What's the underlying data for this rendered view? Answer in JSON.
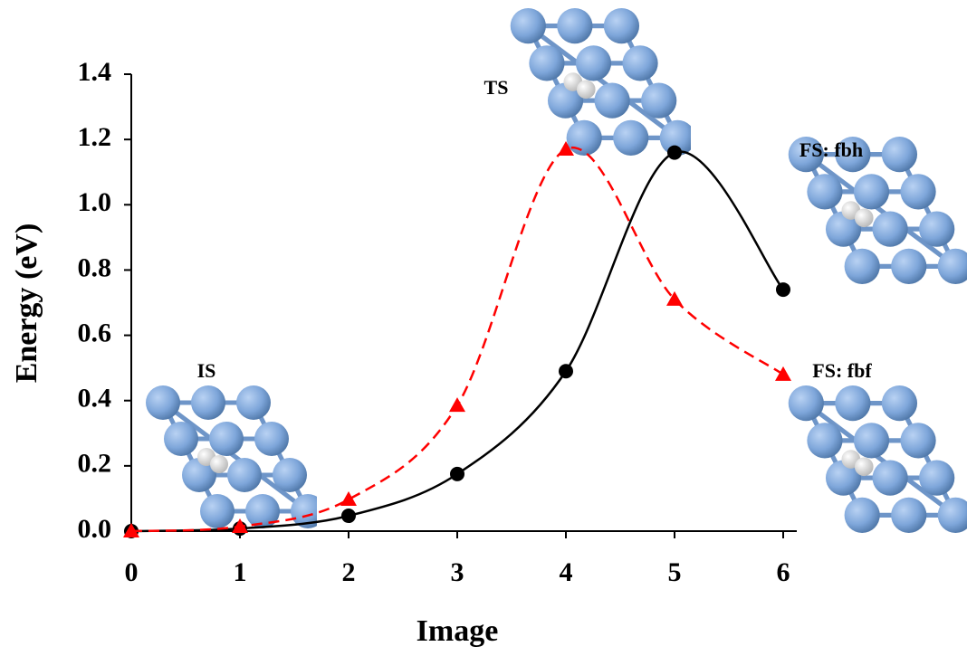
{
  "chart_data": {
    "type": "line",
    "x_label": "Image",
    "y_label": "Energy (eV)",
    "x": [
      0,
      1,
      2,
      3,
      4,
      5,
      6
    ],
    "series": [
      {
        "color": "#000000",
        "marker": "circle",
        "dashed": false,
        "values": [
          0,
          0.008,
          0.047,
          0.175,
          0.49,
          1.16,
          0.74
        ]
      },
      {
        "color": "#ff0000",
        "marker": "triangle",
        "dashed": true,
        "values": [
          0,
          0.014,
          0.097,
          0.385,
          1.17,
          0.71,
          0.48
        ]
      }
    ],
    "xlim": [
      0,
      6
    ],
    "xticks": [
      0,
      1,
      2,
      3,
      4,
      5,
      6
    ],
    "ylim": [
      0,
      1.4
    ],
    "yticks": [
      {
        "value": 0,
        "label": "0.0"
      },
      0.2,
      0.4,
      0.6,
      0.8,
      {
        "value": 1,
        "label": "1.0"
      },
      1.2,
      1.4
    ],
    "grid": false,
    "annotations": [
      "IS",
      "TS",
      "FS: fbh",
      "FS: fbf"
    ]
  }
}
